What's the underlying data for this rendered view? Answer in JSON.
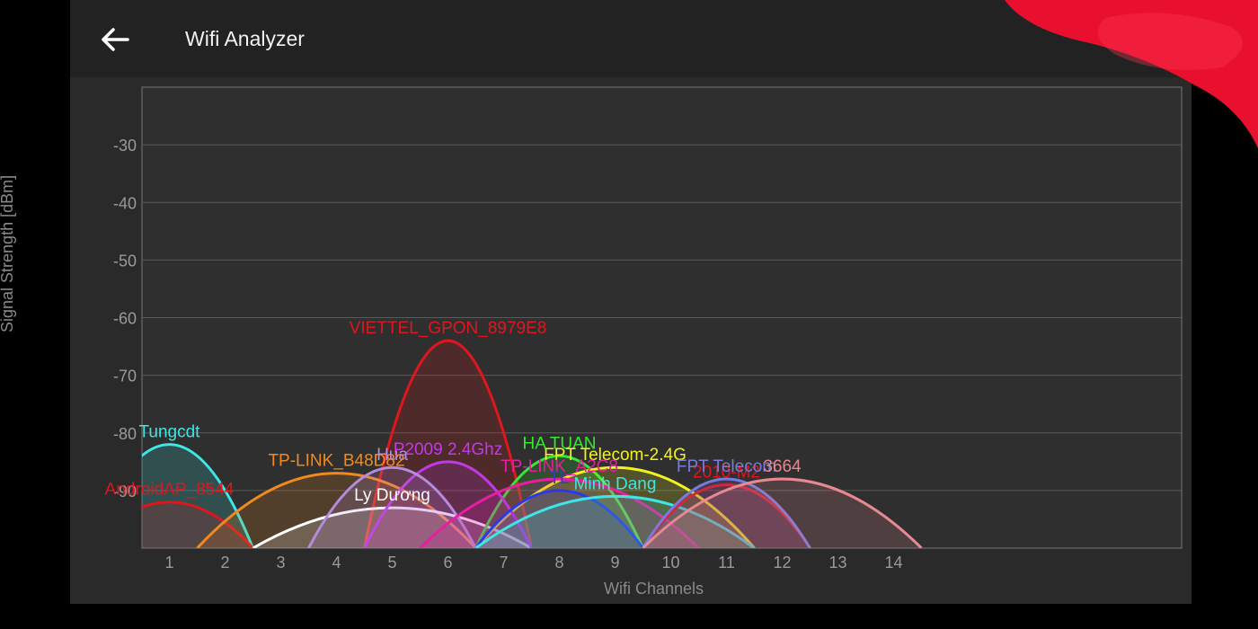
{
  "app": {
    "title": "Wifi Analyzer",
    "back_icon": "arrow-left-icon",
    "colors": {
      "background": "#2a2a2a",
      "appbar": "#222222",
      "grid": "#5a5a5a",
      "decor": "#e8102e"
    }
  },
  "chart_data": {
    "type": "area",
    "xlabel": "Wifi Channels",
    "ylabel": "Signal Strength [dBm]",
    "ylim": [
      -100,
      -20
    ],
    "yticks": [
      -30,
      -40,
      -50,
      -60,
      -70,
      -80,
      -90
    ],
    "xticks": [
      1,
      2,
      3,
      4,
      5,
      6,
      7,
      8,
      9,
      10,
      11,
      12,
      13,
      14
    ],
    "grid": true,
    "series": [
      {
        "name": "VIETTEL_GPON_8979E8",
        "channel": 6,
        "strength": -64,
        "width": 2,
        "color": "#e0161e"
      },
      {
        "name": "Tungcdt",
        "channel": 1,
        "strength": -82,
        "width": 2,
        "color": "#3ee6e6"
      },
      {
        "name": "AndroidAP_8544",
        "channel": 1,
        "strength": -92,
        "width": 2,
        "color": "#e0161e"
      },
      {
        "name": "TP-LINK_B48D82",
        "channel": 4,
        "strength": -87,
        "width": 4,
        "color": "#f08a1e"
      },
      {
        "name": "Ly Dương",
        "channel": 5,
        "strength": -93,
        "width": 4,
        "color": "#ffffff"
      },
      {
        "name": "HA TUAN",
        "channel": 8,
        "strength": -84,
        "width": 2,
        "color": "#36e836"
      },
      {
        "name": "FPT Telecom-2.4G",
        "channel": 9,
        "strength": -86,
        "width": 4,
        "color": "#f2f21e"
      },
      {
        "name": "P2009 2.4Ghz",
        "channel": 6,
        "strength": -85,
        "width": 2,
        "color": "#c23ae8"
      },
      {
        "name": "Hua",
        "channel": 5,
        "strength": -86,
        "width": 2,
        "color": "#b58cdc"
      },
      {
        "name": "TP-LINK_A2C8",
        "channel": 8,
        "strength": -88,
        "width": 4,
        "color": "#e61ea0"
      },
      {
        "name": "TL",
        "channel": 8,
        "strength": -90,
        "width": 2,
        "color": "#2a3ae8"
      },
      {
        "name": "Minh Dang",
        "channel": 9,
        "strength": -91,
        "width": 4,
        "color": "#3ee6e6"
      },
      {
        "name": "2010-M2",
        "channel": 11,
        "strength": -89,
        "width": 2,
        "color": "#e0161e"
      },
      {
        "name": "FPT Telecom",
        "channel": 11,
        "strength": -88,
        "width": 2,
        "color": "#7a7adc"
      },
      {
        "name": "3664",
        "channel": 12,
        "strength": -88,
        "width": 4,
        "color": "#e88890"
      }
    ]
  }
}
